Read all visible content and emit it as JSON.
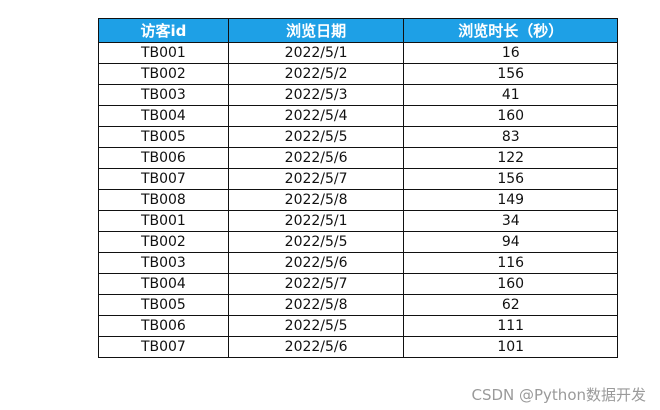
{
  "table": {
    "headers": [
      "访客id",
      "浏览日期",
      "浏览时长（秒）"
    ],
    "rows": [
      [
        "TB001",
        "2022/5/1",
        "16"
      ],
      [
        "TB002",
        "2022/5/2",
        "156"
      ],
      [
        "TB003",
        "2022/5/3",
        "41"
      ],
      [
        "TB004",
        "2022/5/4",
        "160"
      ],
      [
        "TB005",
        "2022/5/5",
        "83"
      ],
      [
        "TB006",
        "2022/5/6",
        "122"
      ],
      [
        "TB007",
        "2022/5/7",
        "156"
      ],
      [
        "TB008",
        "2022/5/8",
        "149"
      ],
      [
        "TB001",
        "2022/5/1",
        "34"
      ],
      [
        "TB002",
        "2022/5/5",
        "94"
      ],
      [
        "TB003",
        "2022/5/6",
        "116"
      ],
      [
        "TB004",
        "2022/5/7",
        "160"
      ],
      [
        "TB005",
        "2022/5/8",
        "62"
      ],
      [
        "TB006",
        "2022/5/5",
        "111"
      ],
      [
        "TB007",
        "2022/5/6",
        "101"
      ]
    ],
    "header_color": "#1ea0e6"
  },
  "watermark": "CSDN @Python数据开发"
}
